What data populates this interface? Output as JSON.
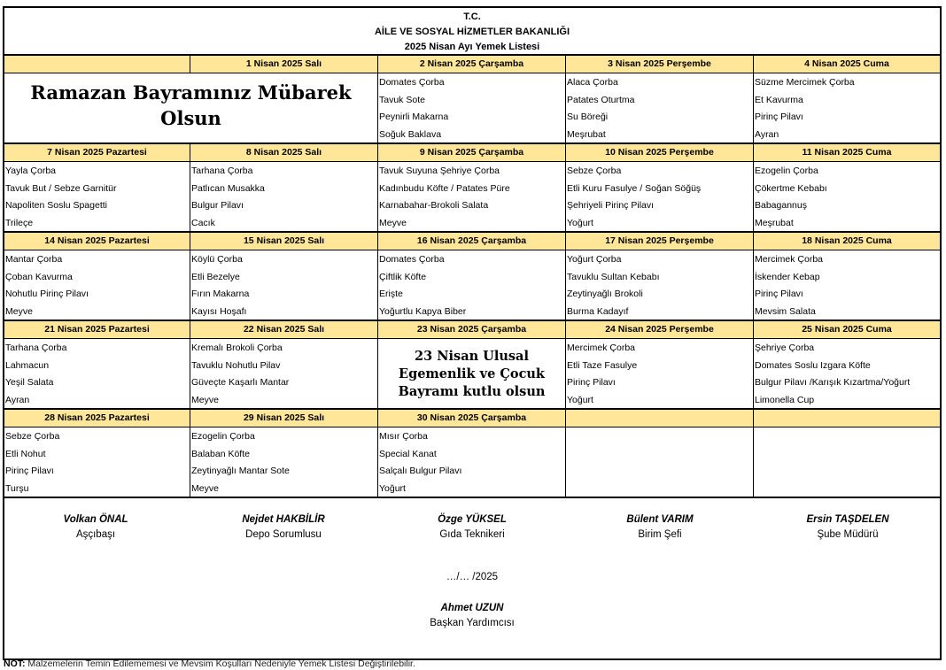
{
  "header": {
    "line1": "T.C.",
    "line2": "AİLE VE SOSYAL HİZMETLER BAKANLIĞI",
    "line3": "2025 Nisan Ayı Yemek Listesi"
  },
  "colors": {
    "day_header_bg": "#FFE699",
    "border": "#000000"
  },
  "weeks": [
    {
      "headers": [
        "",
        "1 Nisan 2025 Salı",
        "2 Nisan 2025 Çarşamba",
        "3 Nisan 2025 Perşembe",
        "4 Nisan 2025 Cuma"
      ],
      "cells": [
        {
          "message": "Ramazan Bayramınız Mübarek Olsun",
          "span": 2
        },
        {
          "items": [
            "Domates Çorba",
            "Tavuk Sote",
            "Peynirli Makarna",
            "Soğuk Baklava"
          ]
        },
        {
          "items": [
            "Alaca Çorba",
            "Patates Oturtma",
            "Su Böreği",
            "Meşrubat"
          ]
        },
        {
          "items": [
            "Süzme Mercimek Çorba",
            "Et Kavurma",
            "Pirinç Pilavı",
            "Ayran"
          ]
        }
      ]
    },
    {
      "headers": [
        "7 Nisan 2025 Pazartesi",
        "8 Nisan 2025 Salı",
        "9 Nisan 2025 Çarşamba",
        "10 Nisan 2025 Perşembe",
        "11 Nisan 2025 Cuma"
      ],
      "cells": [
        {
          "items": [
            "Yayla Çorba",
            "Tavuk But / Sebze Garnitür",
            "Napoliten Soslu Spagetti",
            "Trileçe"
          ]
        },
        {
          "items": [
            "Tarhana Çorba",
            "Patlıcan Musakka",
            "Bulgur Pilavı",
            "Cacık"
          ]
        },
        {
          "items": [
            "Tavuk Suyuna Şehriye Çorba",
            "Kadınbudu Köfte / Patates Püre",
            "Karnabahar-Brokoli Salata",
            "Meyve"
          ]
        },
        {
          "items": [
            "Sebze Çorba",
            "Etli Kuru Fasulye / Soğan Söğüş",
            "Şehriyeli Pirinç Pilavı",
            "Yoğurt"
          ]
        },
        {
          "items": [
            "Ezogelin Çorba",
            "Çökertme Kebabı",
            "Babagannuş",
            "Meşrubat"
          ]
        }
      ]
    },
    {
      "headers": [
        "14 Nisan 2025 Pazartesi",
        "15 Nisan 2025 Salı",
        "16 Nisan 2025 Çarşamba",
        "17 Nisan 2025 Perşembe",
        "18 Nisan 2025 Cuma"
      ],
      "cells": [
        {
          "items": [
            "Mantar Çorba",
            "Çoban Kavurma",
            "Nohutlu Pirinç Pilavı",
            "Meyve"
          ]
        },
        {
          "items": [
            "Köylü Çorba",
            "Etli Bezelye",
            "Fırın Makarna",
            "Kayısı Hoşafı"
          ]
        },
        {
          "items": [
            "Domates Çorba",
            "Çiftlik Köfte",
            "Erişte",
            "Yoğurtlu Kapya Biber"
          ]
        },
        {
          "items": [
            "Yoğurt Çorba",
            "Tavuklu Sultan Kebabı",
            "Zeytinyağlı  Brokoli",
            "Burma Kadayıf"
          ]
        },
        {
          "items": [
            "Mercimek Çorba",
            "İskender Kebap",
            "Pirinç Pilavı",
            "Mevsim Salata"
          ]
        }
      ]
    },
    {
      "headers": [
        "21 Nisan 2025 Pazartesi",
        "22 Nisan 2025 Salı",
        "23 Nisan 2025 Çarşamba",
        "24 Nisan 2025 Perşembe",
        "25 Nisan 2025 Cuma"
      ],
      "cells": [
        {
          "items": [
            "Tarhana Çorba",
            "Lahmacun",
            "Yeşil Salata",
            "Ayran"
          ]
        },
        {
          "items": [
            "Kremalı Brokoli Çorba",
            "Tavuklu Nohutlu Pilav",
            "Güveçte Kaşarlı Mantar",
            "Meyve"
          ]
        },
        {
          "message": "23 Nisan Ulusal Egemenlik ve Çocuk Bayramı kutlu olsun",
          "span": 1
        },
        {
          "items": [
            "Mercimek Çorba",
            "Etli Taze Fasulye",
            "Pirinç Pilavı",
            "Yoğurt"
          ]
        },
        {
          "items": [
            "Şehriye Çorba",
            "Domates  Soslu Izgara Köfte",
            "Bulgur Pilavı /Karışık Kızartma/Yoğurt",
            "Limonella Cup"
          ]
        }
      ]
    },
    {
      "headers": [
        "28 Nisan 2025 Pazartesi",
        "29 Nisan 2025 Salı",
        "30 Nisan 2025 Çarşamba",
        "",
        ""
      ],
      "cells": [
        {
          "items": [
            "Sebze Çorba",
            "Etli Nohut",
            "Pirinç Pilavı",
            "Turşu"
          ]
        },
        {
          "items": [
            "Ezogelin Çorba",
            "Balaban Köfte",
            "Zeytinyağlı Mantar Sote",
            "Meyve"
          ]
        },
        {
          "items": [
            "Mısır Çorba",
            "Special Kanat",
            "Salçalı Bulgur Pilavı",
            "Yoğurt"
          ]
        },
        {
          "items": []
        },
        {
          "items": []
        }
      ]
    }
  ],
  "signatures": [
    {
      "name": "Volkan ÖNAL",
      "title": "Aşçıbaşı"
    },
    {
      "name": "Nejdet HAKBİLİR",
      "title": "Depo Sorumlusu"
    },
    {
      "name": "Özge YÜKSEL",
      "title": "Gıda Teknikeri"
    },
    {
      "name": "Bülent VARIM",
      "title": "Birim Şefi"
    },
    {
      "name": "Ersin TAŞDELEN",
      "title": "Şube Müdürü"
    }
  ],
  "date_line": "…/… /2025",
  "approver": {
    "name": "Ahmet UZUN",
    "title": "Başkan Yardımcısı"
  },
  "note": {
    "label": "NOT:",
    "text": " Malzemelerin Temin Edilememesi ve Mevsim Koşulları Nedeniyle Yemek Listesi Değiştirilebilir."
  }
}
